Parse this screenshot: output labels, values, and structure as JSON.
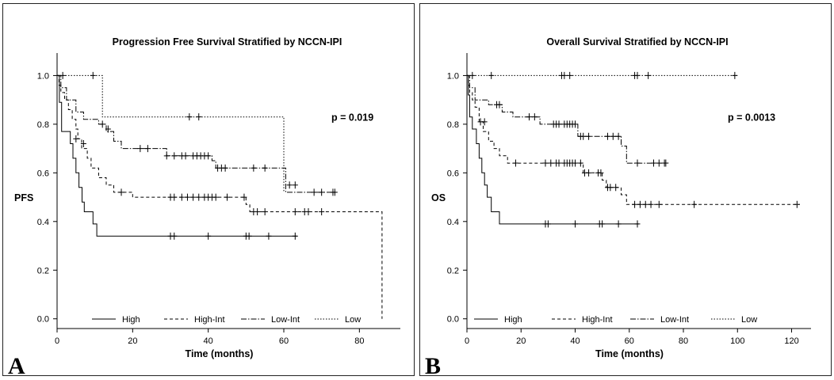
{
  "chart_data": [
    {
      "type": "line",
      "panel_label": "A",
      "title": "Progression Free Survival Stratified by NCCN-IPI",
      "xlabel": "Time (months)",
      "ylabel": "PFS",
      "xlim": [
        0,
        90
      ],
      "ylim": [
        -0.04,
        1.06
      ],
      "xticks": [
        0,
        20,
        40,
        60,
        80
      ],
      "yticks": [
        0.0,
        0.2,
        0.4,
        0.6,
        0.8,
        1.0
      ],
      "ytick_labels": [
        "0.0",
        "0.2",
        "0.4",
        "0.6",
        "0.8",
        "1.0"
      ],
      "annotation": "p = 0.019",
      "legend_position": "bottom",
      "series": [
        {
          "name": "High",
          "dash": "solid",
          "steps": [
            [
              0,
              1.0
            ],
            [
              0.6,
              0.89
            ],
            [
              1.2,
              0.77
            ],
            [
              3.5,
              0.72
            ],
            [
              4.2,
              0.66
            ],
            [
              5.0,
              0.6
            ],
            [
              5.8,
              0.54
            ],
            [
              6.6,
              0.48
            ],
            [
              7.2,
              0.44
            ],
            [
              9.5,
              0.39
            ],
            [
              10.5,
              0.34
            ],
            [
              63.5,
              0.34
            ]
          ],
          "censored": [
            [
              30,
              0.34
            ],
            [
              31,
              0.34
            ],
            [
              40,
              0.34
            ],
            [
              50,
              0.34
            ],
            [
              50.8,
              0.34
            ],
            [
              56,
              0.34
            ],
            [
              63,
              0.34
            ]
          ]
        },
        {
          "name": "High-Int",
          "dash": "4,3",
          "steps": [
            [
              0,
              1.0
            ],
            [
              0.5,
              0.96
            ],
            [
              1.0,
              0.93
            ],
            [
              2.0,
              0.9
            ],
            [
              3.0,
              0.86
            ],
            [
              4.0,
              0.82
            ],
            [
              5.0,
              0.78
            ],
            [
              5.5,
              0.74
            ],
            [
              6.5,
              0.7
            ],
            [
              8.0,
              0.66
            ],
            [
              9.0,
              0.62
            ],
            [
              11.0,
              0.58
            ],
            [
              13.0,
              0.55
            ],
            [
              15.0,
              0.52
            ],
            [
              20.0,
              0.5
            ],
            [
              49.0,
              0.5
            ],
            [
              50.0,
              0.47
            ],
            [
              51.0,
              0.44
            ],
            [
              86.0,
              0.44
            ],
            [
              86.0,
              0.0
            ]
          ],
          "censored": [
            [
              5,
              0.74
            ],
            [
              7,
              0.72
            ],
            [
              17,
              0.52
            ],
            [
              30,
              0.5
            ],
            [
              31,
              0.5
            ],
            [
              33,
              0.5
            ],
            [
              34.5,
              0.5
            ],
            [
              36,
              0.5
            ],
            [
              37.5,
              0.5
            ],
            [
              39,
              0.5
            ],
            [
              40,
              0.5
            ],
            [
              41,
              0.5
            ],
            [
              42,
              0.5
            ],
            [
              45,
              0.5
            ],
            [
              49.5,
              0.5
            ],
            [
              52,
              0.44
            ],
            [
              53,
              0.44
            ],
            [
              55,
              0.44
            ],
            [
              63,
              0.44
            ],
            [
              65.5,
              0.44
            ],
            [
              66.5,
              0.44
            ],
            [
              70,
              0.44
            ]
          ]
        },
        {
          "name": "Low-Int",
          "dash": "7,2,1.5,2",
          "steps": [
            [
              0,
              1.0
            ],
            [
              1.0,
              0.95
            ],
            [
              2.5,
              0.9
            ],
            [
              5.0,
              0.85
            ],
            [
              7.0,
              0.82
            ],
            [
              11.0,
              0.8
            ],
            [
              13.0,
              0.77
            ],
            [
              15.0,
              0.73
            ],
            [
              17.0,
              0.7
            ],
            [
              29.0,
              0.67
            ],
            [
              41.0,
              0.65
            ],
            [
              42.0,
              0.62
            ],
            [
              50.0,
              0.62
            ],
            [
              60.5,
              0.52
            ],
            [
              74.0,
              0.52
            ]
          ],
          "censored": [
            [
              12,
              0.8
            ],
            [
              13.5,
              0.78
            ],
            [
              22,
              0.7
            ],
            [
              24,
              0.7
            ],
            [
              29,
              0.67
            ],
            [
              31,
              0.67
            ],
            [
              33,
              0.67
            ],
            [
              34,
              0.67
            ],
            [
              36,
              0.67
            ],
            [
              37,
              0.67
            ],
            [
              38,
              0.67
            ],
            [
              39,
              0.67
            ],
            [
              40,
              0.67
            ],
            [
              42.5,
              0.62
            ],
            [
              43.5,
              0.62
            ],
            [
              44.5,
              0.62
            ],
            [
              52,
              0.62
            ],
            [
              55,
              0.62
            ],
            [
              61.5,
              0.55
            ],
            [
              63,
              0.55
            ],
            [
              68,
              0.52
            ],
            [
              70,
              0.52
            ],
            [
              73,
              0.52
            ],
            [
              73.5,
              0.52
            ]
          ]
        },
        {
          "name": "Low",
          "dash": "1.5,2",
          "steps": [
            [
              0,
              1.0
            ],
            [
              12.0,
              1.0
            ],
            [
              12.0,
              0.83
            ],
            [
              60.0,
              0.83
            ],
            [
              60.0,
              0.52
            ]
          ],
          "censored": [
            [
              1.5,
              1.0
            ],
            [
              9.5,
              1.0
            ],
            [
              35,
              0.83
            ],
            [
              37.5,
              0.83
            ]
          ]
        }
      ]
    },
    {
      "type": "line",
      "panel_label": "B",
      "title": "Overall Survival Stratified by NCCN-IPI",
      "xlabel": "Time (months)",
      "ylabel": "OS",
      "xlim": [
        0,
        126
      ],
      "ylim": [
        -0.04,
        1.06
      ],
      "xticks": [
        0,
        20,
        40,
        60,
        80,
        100,
        120
      ],
      "yticks": [
        0.0,
        0.2,
        0.4,
        0.6,
        0.8,
        1.0
      ],
      "ytick_labels": [
        "0.0",
        "0.2",
        "0.4",
        "0.6",
        "0.8",
        "1.0"
      ],
      "annotation": "p = 0.0013",
      "legend_position": "bottom",
      "series": [
        {
          "name": "High",
          "dash": "solid",
          "steps": [
            [
              0,
              1.0
            ],
            [
              0.5,
              0.92
            ],
            [
              1.0,
              0.83
            ],
            [
              2.0,
              0.78
            ],
            [
              3.5,
              0.72
            ],
            [
              4.5,
              0.66
            ],
            [
              5.5,
              0.6
            ],
            [
              6.5,
              0.55
            ],
            [
              7.5,
              0.5
            ],
            [
              9.0,
              0.44
            ],
            [
              12.0,
              0.39
            ],
            [
              63.5,
              0.39
            ]
          ],
          "censored": [
            [
              29,
              0.39
            ],
            [
              30,
              0.39
            ],
            [
              40,
              0.39
            ],
            [
              49,
              0.39
            ],
            [
              50,
              0.39
            ],
            [
              56,
              0.39
            ],
            [
              63,
              0.39
            ]
          ]
        },
        {
          "name": "High-Int",
          "dash": "4,3",
          "steps": [
            [
              0,
              1.0
            ],
            [
              0.5,
              0.96
            ],
            [
              1.0,
              0.93
            ],
            [
              2.0,
              0.9
            ],
            [
              3.0,
              0.87
            ],
            [
              4.5,
              0.81
            ],
            [
              6.0,
              0.77
            ],
            [
              8.0,
              0.73
            ],
            [
              10.0,
              0.7
            ],
            [
              12.0,
              0.67
            ],
            [
              15.0,
              0.64
            ],
            [
              42.0,
              0.64
            ],
            [
              43.0,
              0.6
            ],
            [
              48.0,
              0.6
            ],
            [
              50.0,
              0.57
            ],
            [
              51.5,
              0.54
            ],
            [
              57.0,
              0.51
            ],
            [
              59.0,
              0.47
            ],
            [
              123.0,
              0.47
            ]
          ],
          "censored": [
            [
              5,
              0.81
            ],
            [
              6.5,
              0.81
            ],
            [
              18,
              0.64
            ],
            [
              29,
              0.64
            ],
            [
              31,
              0.64
            ],
            [
              33,
              0.64
            ],
            [
              34,
              0.64
            ],
            [
              36,
              0.64
            ],
            [
              37,
              0.64
            ],
            [
              38,
              0.64
            ],
            [
              39,
              0.64
            ],
            [
              40,
              0.64
            ],
            [
              42,
              0.64
            ],
            [
              43.5,
              0.6
            ],
            [
              45,
              0.6
            ],
            [
              48.5,
              0.6
            ],
            [
              49.5,
              0.6
            ],
            [
              52,
              0.54
            ],
            [
              53,
              0.54
            ],
            [
              55,
              0.54
            ],
            [
              62,
              0.47
            ],
            [
              64,
              0.47
            ],
            [
              66,
              0.47
            ],
            [
              68,
              0.47
            ],
            [
              71,
              0.47
            ],
            [
              84,
              0.47
            ],
            [
              122,
              0.47
            ]
          ]
        },
        {
          "name": "Low-Int",
          "dash": "7,2,1.5,2",
          "steps": [
            [
              0,
              1.0
            ],
            [
              1.0,
              0.95
            ],
            [
              3.0,
              0.9
            ],
            [
              8.0,
              0.88
            ],
            [
              13.0,
              0.85
            ],
            [
              17.0,
              0.83
            ],
            [
              27.0,
              0.8
            ],
            [
              41.0,
              0.75
            ],
            [
              57.0,
              0.71
            ],
            [
              59.0,
              0.64
            ],
            [
              74.0,
              0.64
            ]
          ],
          "censored": [
            [
              11,
              0.88
            ],
            [
              12,
              0.88
            ],
            [
              23,
              0.83
            ],
            [
              25,
              0.83
            ],
            [
              32,
              0.8
            ],
            [
              33,
              0.8
            ],
            [
              34,
              0.8
            ],
            [
              36,
              0.8
            ],
            [
              37,
              0.8
            ],
            [
              38,
              0.8
            ],
            [
              39,
              0.8
            ],
            [
              40,
              0.8
            ],
            [
              42,
              0.75
            ],
            [
              43,
              0.75
            ],
            [
              45,
              0.75
            ],
            [
              52,
              0.75
            ],
            [
              54,
              0.75
            ],
            [
              56,
              0.75
            ],
            [
              63,
              0.64
            ],
            [
              69,
              0.64
            ],
            [
              71,
              0.64
            ],
            [
              73,
              0.64
            ],
            [
              73.5,
              0.64
            ]
          ]
        },
        {
          "name": "Low",
          "dash": "1.5,2",
          "steps": [
            [
              0,
              1.0
            ],
            [
              100.0,
              1.0
            ]
          ],
          "censored": [
            [
              2,
              1.0
            ],
            [
              9,
              1.0
            ],
            [
              35,
              1.0
            ],
            [
              36,
              1.0
            ],
            [
              38,
              1.0
            ],
            [
              62,
              1.0
            ],
            [
              63,
              1.0
            ],
            [
              67,
              1.0
            ],
            [
              99,
              1.0
            ]
          ]
        }
      ]
    }
  ]
}
